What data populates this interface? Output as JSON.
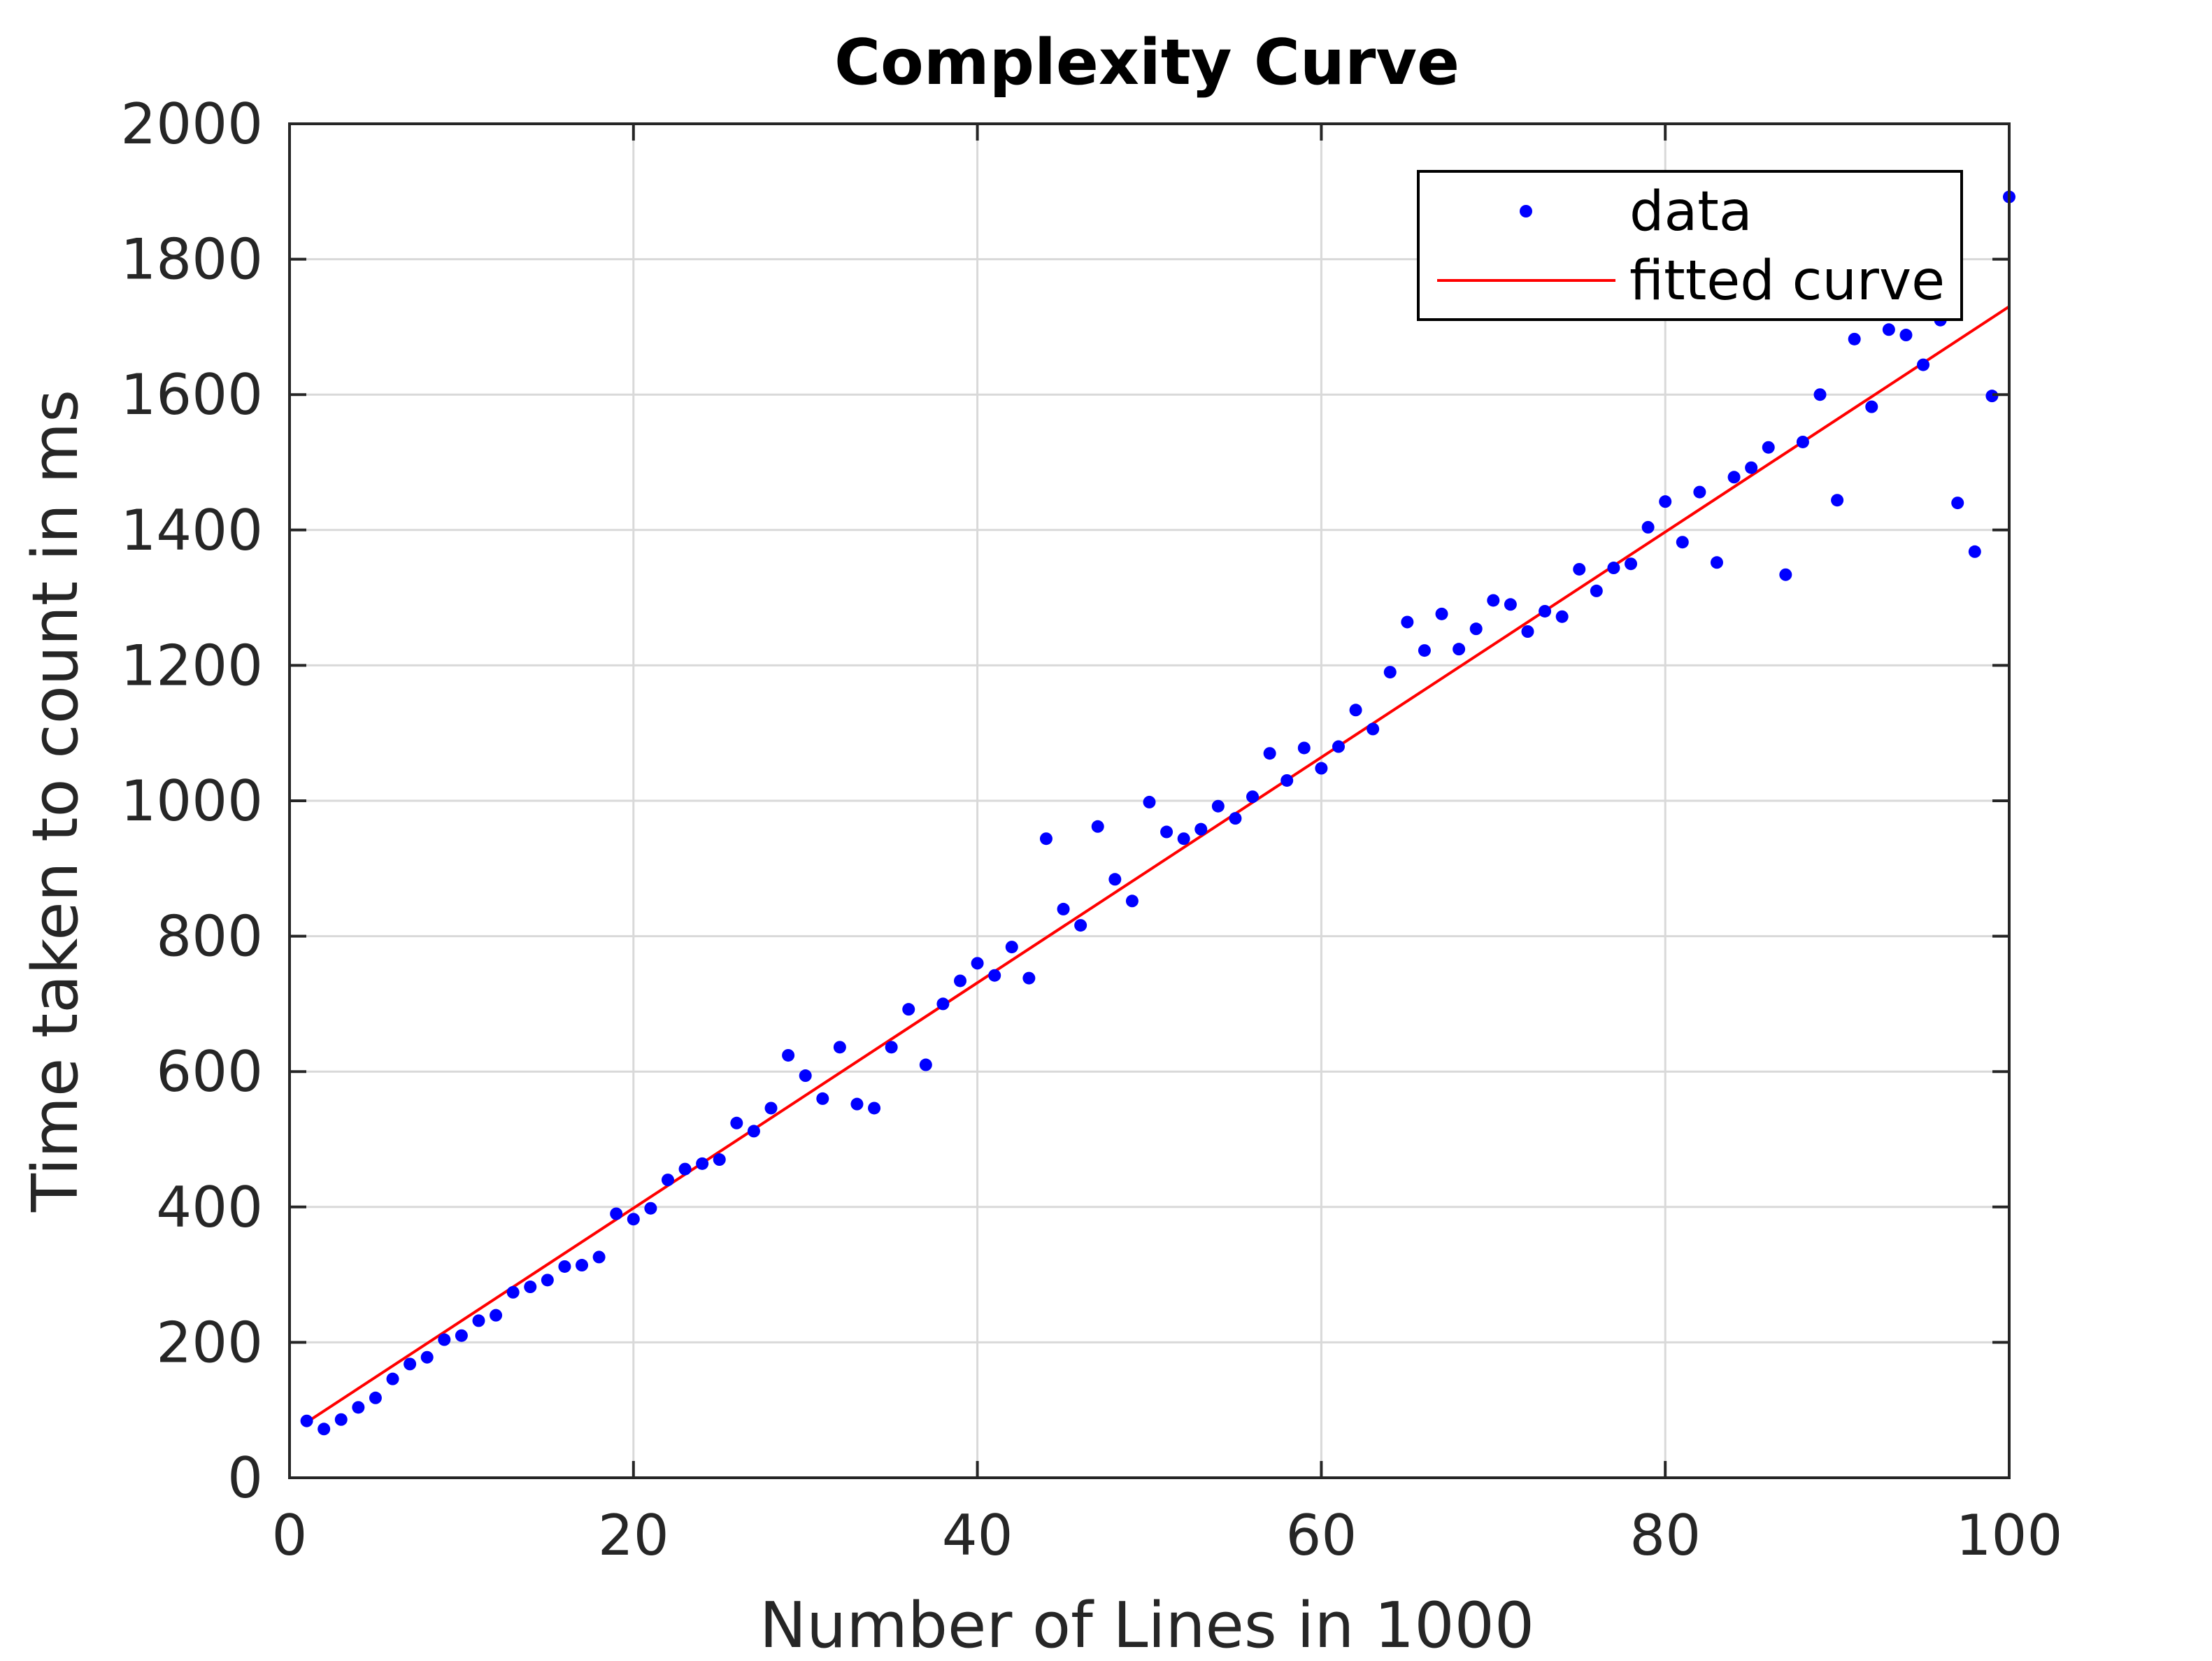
{
  "chart_data": {
    "type": "scatter",
    "title": "Complexity Curve",
    "xlabel": "Number of Lines in 1000",
    "ylabel": "Time taken to count in ms",
    "xlim": [
      0,
      100
    ],
    "ylim": [
      0,
      2000
    ],
    "xticks": [
      0,
      20,
      40,
      60,
      80,
      100
    ],
    "yticks": [
      0,
      200,
      400,
      600,
      800,
      1000,
      1200,
      1400,
      1600,
      1800,
      2000
    ],
    "xtick_labels": [
      "0",
      "20",
      "40",
      "60",
      "80",
      "100"
    ],
    "ytick_labels": [
      "0",
      "200",
      "400",
      "600",
      "800",
      "1000",
      "1200",
      "1400",
      "1600",
      "1800",
      "2000"
    ],
    "grid": true,
    "legend_position": "top-right",
    "series": [
      {
        "name": "data",
        "kind": "markers",
        "color": "#0000ff",
        "x": [
          1,
          2,
          3,
          4,
          5,
          6,
          7,
          8,
          9,
          10,
          11,
          12,
          13,
          14,
          15,
          16,
          17,
          18,
          19,
          20,
          21,
          22,
          23,
          24,
          25,
          26,
          27,
          28,
          29,
          30,
          31,
          32,
          33,
          34,
          35,
          36,
          37,
          38,
          39,
          40,
          41,
          42,
          43,
          44,
          45,
          46,
          47,
          48,
          49,
          50,
          51,
          52,
          53,
          54,
          55,
          56,
          57,
          58,
          59,
          60,
          61,
          62,
          63,
          64,
          65,
          66,
          67,
          68,
          69,
          70,
          71,
          72,
          73,
          74,
          75,
          76,
          77,
          78,
          79,
          80,
          81,
          82,
          83,
          84,
          85,
          86,
          87,
          88,
          89,
          90,
          91,
          92,
          93,
          94,
          95,
          96,
          97,
          98,
          99,
          100
        ],
        "y": [
          84,
          72,
          86,
          104,
          118,
          146,
          168,
          178,
          204,
          210,
          232,
          240,
          274,
          282,
          292,
          312,
          314,
          326,
          390,
          382,
          398,
          440,
          456,
          464,
          470,
          524,
          512,
          546,
          624,
          594,
          560,
          636,
          552,
          546,
          636,
          692,
          610,
          700,
          734,
          760,
          742,
          784,
          738,
          944,
          840,
          816,
          962,
          884,
          852,
          998,
          954,
          944,
          958,
          992,
          974,
          1006,
          1070,
          1030,
          1078,
          1048,
          1080,
          1134,
          1106,
          1190,
          1264,
          1222,
          1276,
          1224,
          1254,
          1296,
          1290,
          1250,
          1280,
          1272,
          1342,
          1310,
          1344,
          1350,
          1404,
          1442,
          1382,
          1456,
          1352,
          1478,
          1492,
          1522,
          1334,
          1530,
          1600,
          1444,
          1682,
          1582,
          1696,
          1688,
          1644,
          1710,
          1440,
          1368,
          1598,
          1892
        ]
      },
      {
        "name": "fitted curve",
        "kind": "line",
        "color": "#ff0000",
        "x": [
          1,
          100
        ],
        "y": [
          82,
          1730
        ]
      }
    ]
  }
}
